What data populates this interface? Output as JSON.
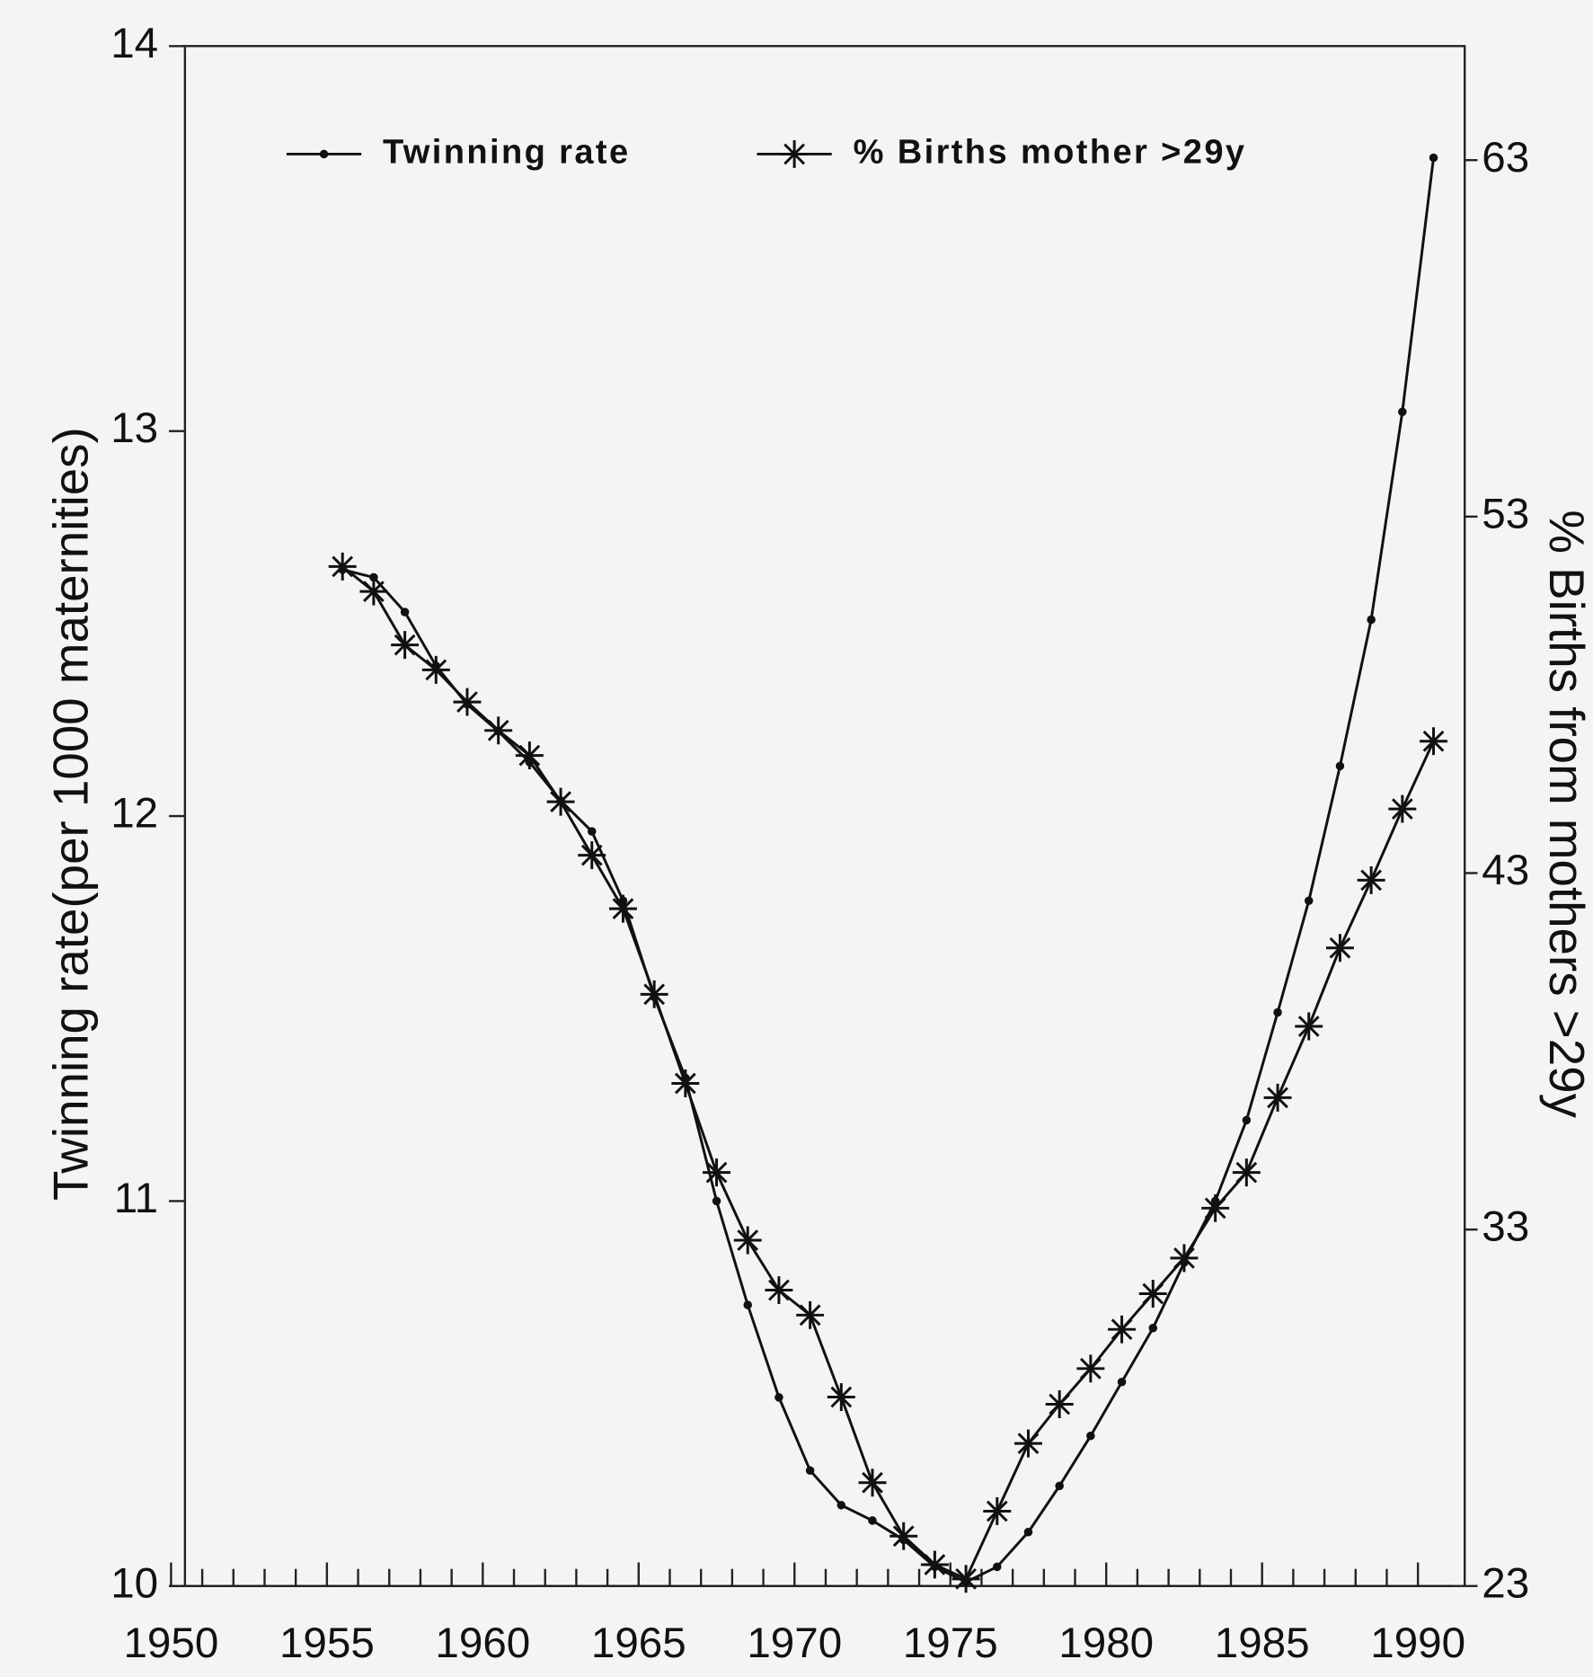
{
  "chart_data": {
    "type": "line",
    "ylabel": "Twinning rate(per 1000 maternities)",
    "y2label": "% Births from mothers >29y",
    "x": [
      1955.5,
      1956.5,
      1957.5,
      1958.5,
      1959.5,
      1960.5,
      1961.5,
      1962.5,
      1963.5,
      1964.5,
      1965.5,
      1966.5,
      1967.5,
      1968.5,
      1969.5,
      1970.5,
      1971.5,
      1972.5,
      1973.5,
      1974.5,
      1975.5,
      1976.5,
      1977.5,
      1978.5,
      1979.5,
      1980.5,
      1981.5,
      1982.5,
      1983.5,
      1984.5,
      1985.5,
      1986.5,
      1987.5,
      1988.5,
      1989.5,
      1990.5
    ],
    "series": [
      {
        "name": "Twinning rate",
        "color": "#111111",
        "marker": "dot",
        "values": [
          12.64,
          12.62,
          12.53,
          12.39,
          12.29,
          12.22,
          12.14,
          12.04,
          11.96,
          11.78,
          11.53,
          11.32,
          11.0,
          10.73,
          10.49,
          10.3,
          10.21,
          10.17,
          10.12,
          10.05,
          10.01,
          10.05,
          10.14,
          10.26,
          10.39,
          10.53,
          10.67,
          10.84,
          11.0,
          11.21,
          11.49,
          11.78,
          12.13,
          12.51,
          13.05,
          13.71
        ]
      },
      {
        "name": "% Births mother >29y",
        "color": "#111111",
        "marker": "star",
        "axis": "y2",
        "values": [
          51.6,
          50.9,
          49.4,
          48.7,
          47.8,
          47.0,
          46.3,
          45.0,
          43.5,
          42.0,
          39.6,
          37.1,
          34.6,
          32.7,
          31.3,
          30.6,
          28.3,
          25.9,
          24.4,
          23.6,
          23.2,
          25.1,
          27.0,
          28.1,
          29.1,
          30.2,
          31.2,
          32.2,
          33.6,
          34.6,
          36.7,
          38.7,
          40.9,
          42.8,
          44.8,
          46.7
        ]
      }
    ],
    "xlim": [
      1950,
      1991.5
    ],
    "xticks": [
      1950,
      1955,
      1960,
      1965,
      1970,
      1975,
      1980,
      1985,
      1990
    ],
    "ylim": [
      10,
      14
    ],
    "yticks": [
      10,
      11,
      12,
      13,
      14
    ],
    "y2lim": [
      23,
      66.2
    ],
    "y2ticks": [
      23,
      33,
      43,
      53,
      63
    ],
    "legend": "top"
  }
}
